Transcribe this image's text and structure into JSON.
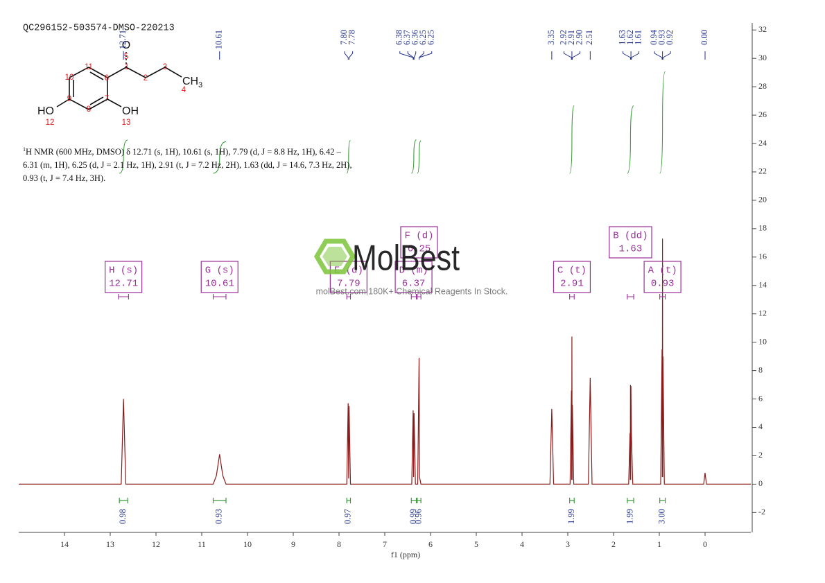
{
  "title": "QC296152-503574-DMSO-220213",
  "structure": {
    "ho": "HO",
    "oh": "OH",
    "ch": "CH",
    "ch_sub": "3",
    "o": "O",
    "numbers": [
      "1",
      "2",
      "3",
      "4",
      "5",
      "6",
      "7",
      "8",
      "9",
      "10",
      "11",
      "12",
      "13"
    ]
  },
  "nmr_text": {
    "sup": "1",
    "lines": [
      "H NMR (600 MHz, DMSO) δ 12.71 (s, 1H), 10.61 (s, 1H), 7.79 (d, J = 8.8 Hz, 1H), 6.42 –",
      "6.31 (m, 1H), 6.25 (d, J = 2.1 Hz, 1H), 2.91 (t, J = 7.2 Hz, 2H), 1.63 (dd, J = 14.6, 7.3 Hz, 2H),",
      "0.93 (t, J = 7.4 Hz, 3H)."
    ]
  },
  "watermark": {
    "brand": "MolBest",
    "tagline": "molBest.com,180K+ Chemical Reagents In Stock."
  },
  "chart_data": {
    "type": "nmr",
    "x_label": "f1 (ppm)",
    "color": "#8b1a1a",
    "x": [
      15,
      12.76,
      12.71,
      12.66,
      10.75,
      10.68,
      10.61,
      10.54,
      10.47,
      7.83,
      7.8,
      7.79,
      7.78,
      7.75,
      6.41,
      6.38,
      6.37,
      6.36,
      6.33,
      6.28,
      6.25,
      6.24,
      6.21,
      3.39,
      3.35,
      3.31,
      2.95,
      2.92,
      2.915,
      2.91,
      2.905,
      2.9,
      2.87,
      2.55,
      2.51,
      2.47,
      1.67,
      1.64,
      1.635,
      1.63,
      1.625,
      1.62,
      1.61,
      1.58,
      0.97,
      0.94,
      0.935,
      0.93,
      0.925,
      0.92,
      0.89,
      0.03,
      0,
      -0.03,
      -1
    ],
    "values": [
      0,
      0,
      6.0,
      0,
      0,
      0.6,
      2.1,
      0.6,
      0,
      0,
      5.7,
      0.4,
      5.5,
      0,
      0,
      5.2,
      0.5,
      5.0,
      0,
      0,
      8.9,
      0.5,
      0,
      0,
      5.3,
      0,
      0,
      6.6,
      0.3,
      10.4,
      0.3,
      5.6,
      0,
      0,
      7.5,
      0,
      0,
      3.6,
      0.3,
      7.0,
      0.3,
      6.9,
      3.5,
      0,
      0,
      9.5,
      0.5,
      17.3,
      0.5,
      9.0,
      0,
      0,
      0.8,
      0,
      0
    ],
    "xlim": [
      15,
      -1
    ],
    "xticks": [
      14,
      13,
      12,
      11,
      10,
      9,
      8,
      7,
      6,
      5,
      4,
      3,
      2,
      1,
      0
    ],
    "ylim": [
      -3.4,
      32.5
    ],
    "yticks": [
      -2,
      0,
      2,
      4,
      6,
      8,
      10,
      12,
      14,
      16,
      18,
      20,
      22,
      24,
      26,
      28,
      30,
      32
    ],
    "peak_labels": [
      12.71,
      10.61,
      {
        "value": 7.8,
        "label": "7.80"
      },
      7.78,
      6.38,
      6.37,
      6.36,
      6.25,
      6.25,
      3.35,
      2.92,
      2.91,
      {
        "value": 2.9,
        "label": "2.90"
      },
      2.51,
      1.63,
      1.62,
      1.61,
      0.94,
      0.93,
      0.92,
      {
        "value": 0,
        "label": "0.00"
      }
    ],
    "multiplets": [
      {
        "name": "H (s)",
        "shift": 12.71,
        "from": 12.82,
        "to": 12.6
      },
      {
        "name": "G (s)",
        "shift": 10.61,
        "from": 10.75,
        "to": 10.47
      },
      {
        "name": "E (d)",
        "shift": 7.79,
        "from": 7.83,
        "to": 7.75
      },
      {
        "name": "D (m)",
        "shift": 6.37,
        "from": 6.42,
        "to": 6.31
      },
      {
        "name": "F (d)",
        "shift": 6.25,
        "from": 6.29,
        "to": 6.21
      },
      {
        "name": "C (t)",
        "shift": 2.91,
        "from": 2.96,
        "to": 2.86
      },
      {
        "name": "B (dd)",
        "shift": 1.63,
        "from": 1.7,
        "to": 1.56
      },
      {
        "name": "A (t)",
        "shift": 0.93,
        "from": 0.99,
        "to": 0.87
      }
    ],
    "integrals": [
      {
        "value": 0.98,
        "from": 12.8,
        "to": 12.62
      },
      {
        "value": 0.93,
        "from": 10.75,
        "to": 10.47
      },
      {
        "value": 0.97,
        "from": 7.83,
        "to": 7.75
      },
      {
        "value": 0.99,
        "from": 6.42,
        "to": 6.31
      },
      {
        "value": 0.96,
        "from": 6.29,
        "to": 6.21
      },
      {
        "value": 1.99,
        "from": 2.96,
        "to": 2.86
      },
      {
        "value": 1.99,
        "from": 1.7,
        "to": 1.56
      },
      {
        "value": 3,
        "label": "3.00",
        "from": 0.99,
        "to": 0.87
      }
    ]
  }
}
